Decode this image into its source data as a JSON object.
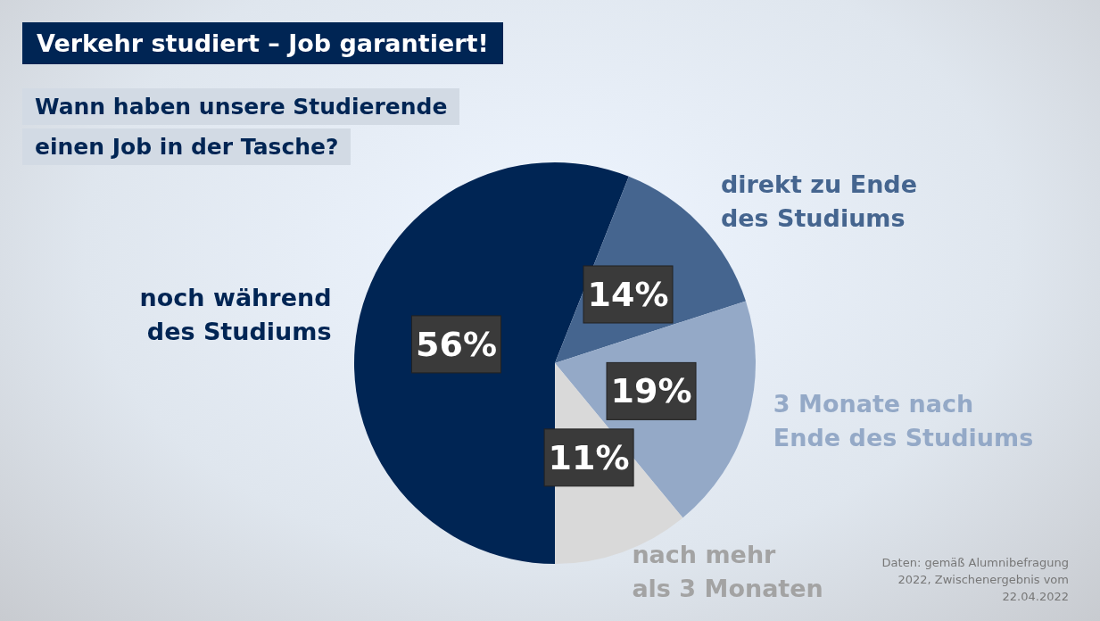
{
  "chart_data": {
    "type": "pie",
    "title": "Verkehr studiert – Job garantiert!",
    "subtitle": "Wann haben unsere Studierende einen Job in der Tasche?",
    "categories": [
      "noch während des Studiums",
      "direkt zu Ende des Studiums",
      "3 Monate nach Ende des Studiums",
      "nach mehr als 3 Monaten"
    ],
    "values": [
      56,
      14,
      19,
      11
    ],
    "colors": [
      "#002554",
      "#45658f",
      "#94a9c7",
      "#d9d9d9"
    ],
    "value_labels": [
      "56%",
      "14%",
      "19%",
      "11%"
    ],
    "annotations": [
      "Daten: gemäß Alumnibefragung 2022, Zwischenergebnis vom 22.04.2022"
    ]
  }
}
